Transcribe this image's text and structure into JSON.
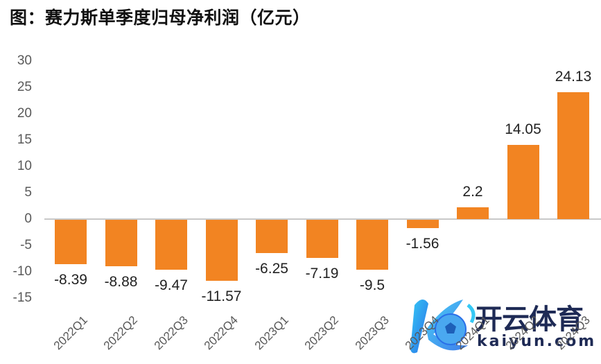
{
  "title": "图：赛力斯单季度归母净利润（亿元）",
  "watermark": {
    "cn": "开云体育",
    "en": "kaiyun.com"
  },
  "chart_data": {
    "type": "bar",
    "title": "图：赛力斯单季度归母净利润（亿元）",
    "xlabel": "",
    "ylabel": "亿元",
    "categories": [
      "2022Q1",
      "2022Q2",
      "2022Q3",
      "2022Q4",
      "2023Q1",
      "2023Q2",
      "2023Q3",
      "2023Q4",
      "2024Q1",
      "2024Q2",
      "2024Q3"
    ],
    "values": [
      -8.39,
      -8.88,
      -9.47,
      -11.57,
      -6.25,
      -7.19,
      -9.5,
      -1.56,
      2.2,
      14.05,
      24.13
    ],
    "labels": [
      "-8.39",
      "-8.88",
      "-9.47",
      "-11.57",
      "-6.25",
      "-7.19",
      "-9.5",
      "-1.56",
      "2.2",
      "14.05",
      "24.13"
    ],
    "ylim": [
      -15,
      30
    ],
    "yticks": [
      "30",
      "25",
      "20",
      "15",
      "10",
      "5",
      "0",
      "-5",
      "-10",
      "-15"
    ],
    "grid": false,
    "legend": null,
    "bar_color": "#f28422"
  }
}
